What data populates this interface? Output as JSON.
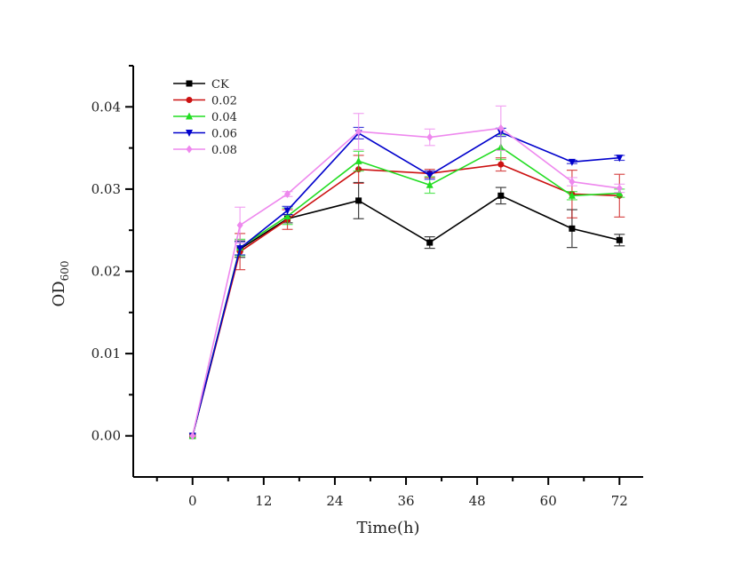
{
  "chart_data": {
    "type": "line",
    "title": "",
    "xlabel": "Time(h)",
    "ylabel_main": "OD",
    "ylabel_sub": "600",
    "xlim": [
      -10,
      76
    ],
    "ylim": [
      -0.005,
      0.045
    ],
    "xticks": [
      0,
      12,
      24,
      36,
      48,
      60,
      72
    ],
    "xtick_labels": [
      "0",
      "12",
      "24",
      "36",
      "48",
      "60",
      "72"
    ],
    "xminor_step": 6,
    "yticks": [
      0.0,
      0.01,
      0.02,
      0.03,
      0.04
    ],
    "ytick_labels": [
      "0.00",
      "0.01",
      "0.02",
      "0.03",
      "0.04"
    ],
    "yminor_step": 0.005,
    "grid": false,
    "legend_position": "top-left",
    "x": [
      0,
      8,
      16,
      28,
      40,
      52,
      64,
      72
    ],
    "series": [
      {
        "name": "CK",
        "color": "#000000",
        "marker": "square",
        "values": [
          0.0,
          0.0227,
          0.0264,
          0.0286,
          0.0235,
          0.0292,
          0.0252,
          0.0238
        ],
        "errors": [
          0.0,
          0.001,
          0.0005,
          0.0022,
          0.0007,
          0.001,
          0.0023,
          0.0007
        ]
      },
      {
        "name": "0.02",
        "color": "#cc1111",
        "marker": "circle",
        "values": [
          0.0,
          0.0224,
          0.0263,
          0.0324,
          0.0319,
          0.033,
          0.0294,
          0.0292
        ],
        "errors": [
          0.0,
          0.0022,
          0.0012,
          0.0017,
          0.0005,
          0.0008,
          0.0029,
          0.0026
        ]
      },
      {
        "name": "0.04",
        "color": "#22dd22",
        "marker": "triangle-up",
        "values": [
          0.0,
          0.0229,
          0.0267,
          0.0334,
          0.0305,
          0.0351,
          0.0292,
          0.0295
        ],
        "errors": [
          0.0,
          0.001,
          0.001,
          0.0012,
          0.001,
          0.0015,
          0.0005,
          0.0005
        ]
      },
      {
        "name": "0.06",
        "color": "#0000cc",
        "marker": "triangle-down",
        "values": [
          0.0,
          0.0228,
          0.0274,
          0.0368,
          0.0317,
          0.0369,
          0.0333,
          0.0338
        ],
        "errors": [
          0.0,
          0.0008,
          0.0005,
          0.0007,
          0.0005,
          0.0005,
          0.0002,
          0.0003
        ]
      },
      {
        "name": "0.08",
        "color": "#ee88ee",
        "marker": "diamond",
        "values": [
          0.0,
          0.0256,
          0.0294,
          0.037,
          0.0363,
          0.0374,
          0.0309,
          0.0301
        ],
        "errors": [
          0.0,
          0.0022,
          0.0003,
          0.0022,
          0.001,
          0.0027,
          0.0005,
          0.0005
        ]
      }
    ]
  }
}
